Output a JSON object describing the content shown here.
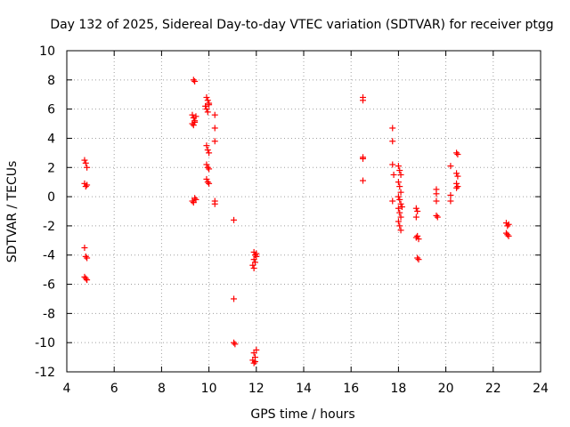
{
  "chart_data": {
    "type": "scatter",
    "title": "Day 132 of 2025, Sidereal Day-to-day VTEC variation (SDTVAR) for receiver ptgg",
    "xlabel": "GPS time / hours",
    "ylabel": "SDTVAR / TECUs",
    "xlim": [
      4,
      24
    ],
    "ylim": [
      -12,
      10
    ],
    "x_ticks": [
      4,
      6,
      8,
      10,
      12,
      14,
      16,
      18,
      20,
      22,
      24
    ],
    "y_ticks": [
      -12,
      -10,
      -8,
      -6,
      -4,
      -2,
      0,
      2,
      4,
      6,
      8,
      10
    ],
    "x_tick_labels": [
      "4",
      "6",
      "8",
      "10",
      "12",
      "14",
      "16",
      "18",
      "20",
      "22",
      "24"
    ],
    "y_tick_labels": [
      "-12",
      "-10",
      "-8",
      "-6",
      "-4",
      "-2",
      "0",
      "2",
      "4",
      "6",
      "8",
      "10"
    ],
    "grid": true,
    "marker": "+",
    "color": "#ff0000",
    "series": [
      {
        "name": "SDTVAR",
        "points": [
          [
            4.75,
            2.5
          ],
          [
            4.8,
            2.3
          ],
          [
            4.85,
            2.0
          ],
          [
            4.75,
            0.9
          ],
          [
            4.8,
            0.7
          ],
          [
            4.85,
            0.8
          ],
          [
            4.75,
            -3.5
          ],
          [
            4.8,
            -4.1
          ],
          [
            4.85,
            -4.2
          ],
          [
            4.75,
            -5.5
          ],
          [
            4.8,
            -5.6
          ],
          [
            4.85,
            -5.7
          ],
          [
            9.35,
            8.0
          ],
          [
            9.4,
            7.9
          ],
          [
            9.3,
            5.6
          ],
          [
            9.35,
            5.4
          ],
          [
            9.4,
            5.2
          ],
          [
            9.45,
            5.5
          ],
          [
            9.3,
            5.0
          ],
          [
            9.35,
            4.9
          ],
          [
            9.4,
            5.1
          ],
          [
            9.3,
            -0.3
          ],
          [
            9.35,
            -0.4
          ],
          [
            9.4,
            -0.1
          ],
          [
            9.45,
            -0.2
          ],
          [
            9.9,
            6.8
          ],
          [
            9.95,
            6.6
          ],
          [
            10.0,
            6.4
          ],
          [
            9.85,
            6.2
          ],
          [
            9.9,
            6.0
          ],
          [
            9.95,
            5.8
          ],
          [
            10.0,
            6.3
          ],
          [
            9.9,
            3.5
          ],
          [
            9.95,
            3.2
          ],
          [
            10.0,
            3.0
          ],
          [
            9.9,
            2.2
          ],
          [
            9.95,
            2.0
          ],
          [
            10.0,
            1.9
          ],
          [
            9.9,
            1.2
          ],
          [
            9.95,
            1.0
          ],
          [
            10.0,
            0.9
          ],
          [
            10.25,
            5.6
          ],
          [
            10.25,
            4.7
          ],
          [
            10.25,
            3.8
          ],
          [
            10.25,
            -0.3
          ],
          [
            10.25,
            -0.5
          ],
          [
            11.05,
            -1.6
          ],
          [
            11.05,
            -7.0
          ],
          [
            11.05,
            -10.0
          ],
          [
            11.1,
            -10.1
          ],
          [
            11.9,
            -3.8
          ],
          [
            11.95,
            -4.0
          ],
          [
            12.0,
            -3.9
          ],
          [
            11.9,
            -4.3
          ],
          [
            11.95,
            -4.5
          ],
          [
            11.85,
            -4.7
          ],
          [
            11.9,
            -4.9
          ],
          [
            12.0,
            -4.1
          ],
          [
            11.9,
            -10.7
          ],
          [
            11.95,
            -11.0
          ],
          [
            12.0,
            -10.5
          ],
          [
            11.85,
            -11.2
          ],
          [
            11.9,
            -11.4
          ],
          [
            11.95,
            -11.3
          ],
          [
            16.5,
            6.8
          ],
          [
            16.5,
            6.6
          ],
          [
            16.5,
            2.7
          ],
          [
            16.5,
            2.6
          ],
          [
            16.5,
            1.1
          ],
          [
            17.75,
            4.7
          ],
          [
            17.75,
            3.8
          ],
          [
            17.75,
            2.2
          ],
          [
            17.8,
            1.5
          ],
          [
            17.75,
            -0.3
          ],
          [
            18.0,
            2.1
          ],
          [
            18.05,
            1.8
          ],
          [
            18.1,
            1.5
          ],
          [
            18.0,
            1.0
          ],
          [
            18.05,
            0.7
          ],
          [
            18.1,
            0.3
          ],
          [
            18.0,
            0.0
          ],
          [
            18.05,
            -0.2
          ],
          [
            18.1,
            -0.5
          ],
          [
            18.0,
            -0.8
          ],
          [
            18.05,
            -1.1
          ],
          [
            18.1,
            -1.4
          ],
          [
            18.0,
            -1.7
          ],
          [
            18.05,
            -2.0
          ],
          [
            18.1,
            -2.3
          ],
          [
            18.15,
            -0.7
          ],
          [
            18.75,
            -0.8
          ],
          [
            18.8,
            -1.0
          ],
          [
            18.75,
            -1.4
          ],
          [
            18.8,
            -2.7
          ],
          [
            18.85,
            -2.9
          ],
          [
            18.75,
            -2.8
          ],
          [
            18.8,
            -4.2
          ],
          [
            18.85,
            -4.3
          ],
          [
            19.6,
            0.5
          ],
          [
            19.6,
            0.2
          ],
          [
            19.6,
            -0.3
          ],
          [
            19.6,
            -1.3
          ],
          [
            19.65,
            -1.4
          ],
          [
            20.2,
            2.1
          ],
          [
            20.2,
            0.1
          ],
          [
            20.2,
            -0.3
          ],
          [
            20.45,
            3.0
          ],
          [
            20.5,
            2.9
          ],
          [
            20.45,
            1.6
          ],
          [
            20.5,
            1.4
          ],
          [
            20.45,
            0.9
          ],
          [
            20.5,
            0.7
          ],
          [
            20.45,
            0.6
          ],
          [
            22.55,
            -1.8
          ],
          [
            22.6,
            -2.0
          ],
          [
            22.65,
            -1.9
          ],
          [
            22.55,
            -2.5
          ],
          [
            22.6,
            -2.6
          ],
          [
            22.65,
            -2.7
          ]
        ]
      }
    ]
  }
}
